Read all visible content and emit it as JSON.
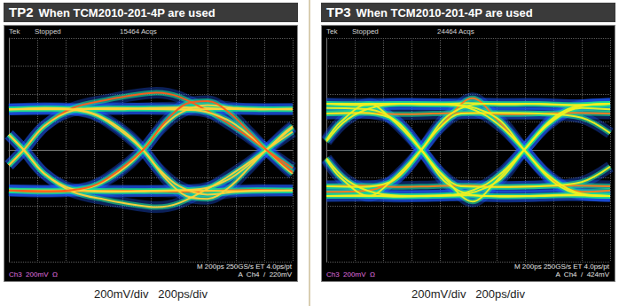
{
  "chart_data": [
    {
      "type": "line",
      "title": "TP2 When TCM2010-201-4P are used",
      "caption": "200mV/div   200ps/div",
      "annotations": [
        "Tek",
        "Stopped",
        "15464 Acqs",
        "Ch3  200mV  Ω",
        "M 200ps 250GS/s ET 4.0ps/pt",
        "A  Ch4  /  220mV"
      ],
      "xlim": [
        0,
        2000
      ],
      "xticks": [
        0,
        200,
        400,
        600,
        800,
        1000,
        1200,
        1400,
        1600,
        1800,
        2000
      ],
      "ylim": [
        -800,
        800
      ],
      "yticks": [
        -800,
        -600,
        -400,
        -200,
        0,
        200,
        400,
        600,
        800
      ],
      "grid": true,
      "tick_labels": false,
      "series": [
        {
          "color": "#ffd23a",
          "x": [
            0,
            250,
            500,
            750,
            1000,
            1250,
            1500,
            1750,
            2000
          ],
          "values": [
            290,
            300,
            295,
            290,
            300,
            305,
            295,
            290,
            295
          ]
        },
        {
          "color": "#ff5a1a",
          "x": [
            0,
            250,
            500,
            750,
            1000,
            1250,
            1500,
            1750,
            2000
          ],
          "values": [
            -290,
            -300,
            -295,
            -290,
            -295,
            -300,
            -290,
            -285,
            -290
          ]
        },
        {
          "color": "#ffd23a",
          "x": [
            0,
            300,
            550,
            700,
            850,
            945,
            1050,
            1200,
            1400,
            1600,
            1800,
            2000
          ],
          "values": [
            -290,
            -295,
            -275,
            -210,
            -100,
            0,
            130,
            260,
            320,
            300,
            290,
            290
          ]
        },
        {
          "color": "#ffd23a",
          "x": [
            0,
            300,
            550,
            700,
            850,
            945,
            1050,
            1200,
            1400,
            1600,
            1800,
            2000
          ],
          "values": [
            290,
            295,
            275,
            210,
            100,
            0,
            -130,
            -260,
            -320,
            -300,
            -290,
            -290
          ]
        },
        {
          "color": "#ff5a1a",
          "x": [
            0,
            105,
            250,
            450,
            700,
            900,
            1040,
            1200,
            1450,
            1650,
            1815,
            2000
          ],
          "values": [
            -110,
            0,
            170,
            300,
            360,
            395,
            410,
            380,
            250,
            120,
            0,
            -130
          ]
        },
        {
          "color": "#ffd23a",
          "x": [
            0,
            105,
            250,
            450,
            700,
            900,
            1040,
            1200,
            1450,
            1650,
            1815,
            2000
          ],
          "values": [
            110,
            0,
            -170,
            -300,
            -360,
            -395,
            -410,
            -380,
            -250,
            -120,
            0,
            130
          ]
        },
        {
          "color": "#ffd23a",
          "x": [
            0,
            105,
            250,
            450,
            700,
            1000,
            1300,
            1600,
            2000
          ],
          "values": [
            -110,
            0,
            170,
            280,
            300,
            295,
            290,
            295,
            290
          ]
        },
        {
          "color": "#ffd23a",
          "x": [
            0,
            105,
            250,
            450,
            700,
            1000,
            1300,
            1600,
            2000
          ],
          "values": [
            110,
            0,
            -170,
            -280,
            -300,
            -295,
            -290,
            -295,
            -290
          ]
        },
        {
          "color": "#ffd23a",
          "x": [
            0,
            400,
            800,
            1100,
            1350,
            1550,
            1700,
            1815,
            1950,
            2000
          ],
          "values": [
            -290,
            -290,
            -295,
            -290,
            -280,
            -210,
            -100,
            0,
            130,
            170
          ]
        },
        {
          "color": "#ffd23a",
          "x": [
            0,
            400,
            800,
            1100,
            1350,
            1550,
            1700,
            1815,
            1950,
            2000
          ],
          "values": [
            290,
            290,
            295,
            290,
            280,
            210,
            100,
            0,
            -130,
            -170
          ]
        },
        {
          "color": "#ffd23a",
          "x": [
            0,
            300,
            550,
            700,
            945,
            1100,
            1250,
            1400,
            1550,
            1700,
            1815,
            2000
          ],
          "values": [
            290,
            295,
            270,
            200,
            0,
            -200,
            -330,
            -350,
            -270,
            -120,
            0,
            160
          ]
        },
        {
          "color": "#ff5a1a",
          "x": [
            0,
            300,
            550,
            700,
            945,
            1100,
            1250,
            1400,
            1550,
            1700,
            1815,
            2000
          ],
          "values": [
            -290,
            -295,
            -270,
            -200,
            0,
            200,
            330,
            350,
            270,
            120,
            0,
            -160
          ]
        }
      ]
    },
    {
      "type": "line",
      "title": "TP3 When TCM2010-201-4P are used",
      "caption": "200mV/div   200ps/div",
      "annotations": [
        "Tek",
        "Stopped",
        "24464 Acqs",
        "Ch3  200mV  Ω",
        "M 200ps 250GS/s ET 4.0ps/pt",
        "A  Ch4  /  424mV"
      ],
      "xlim": [
        0,
        2000
      ],
      "xticks": [
        0,
        200,
        400,
        600,
        800,
        1000,
        1200,
        1400,
        1600,
        1800,
        2000
      ],
      "ylim": [
        -800,
        800
      ],
      "yticks": [
        -800,
        -600,
        -400,
        -200,
        0,
        200,
        400,
        600,
        800
      ],
      "grid": true,
      "tick_labels": false,
      "series": [
        {
          "color": "#f0f020",
          "x": [
            0,
            250,
            500,
            750,
            1000,
            1250,
            1500,
            1750,
            2000
          ],
          "values": [
            330,
            320,
            330,
            325,
            335,
            325,
            330,
            320,
            330
          ]
        },
        {
          "color": "#ff7a1a",
          "x": [
            0,
            250,
            500,
            750,
            1000,
            1250,
            1500,
            1750,
            2000
          ],
          "values": [
            260,
            265,
            255,
            260,
            265,
            255,
            260,
            265,
            260
          ]
        },
        {
          "color": "#f0f020",
          "x": [
            0,
            250,
            500,
            750,
            1000,
            1250,
            1500,
            1750,
            2000
          ],
          "values": [
            -330,
            -325,
            -335,
            -330,
            -325,
            -335,
            -330,
            -325,
            -330
          ]
        },
        {
          "color": "#ff7a1a",
          "x": [
            0,
            250,
            500,
            750,
            1000,
            1250,
            1500,
            1750,
            2000
          ],
          "values": [
            -260,
            -255,
            -265,
            -260,
            -255,
            -265,
            -260,
            -255,
            -260
          ]
        },
        {
          "color": "#ff7a1a",
          "x": [
            0,
            300,
            500,
            669,
            850,
            1030,
            1200,
            1394,
            1600,
            1800,
            2000
          ],
          "values": [
            -300,
            -290,
            -200,
            0,
            220,
            370,
            220,
            0,
            -220,
            -300,
            -290
          ]
        },
        {
          "color": "#f0f020",
          "x": [
            0,
            300,
            500,
            669,
            850,
            1030,
            1200,
            1394,
            1600,
            1800,
            2000
          ],
          "values": [
            300,
            290,
            200,
            0,
            -220,
            -370,
            -220,
            0,
            220,
            300,
            290
          ]
        },
        {
          "color": "#f0f020",
          "x": [
            0,
            150,
            350,
            600,
            900,
            1200,
            1394,
            1600,
            1800,
            2000
          ],
          "values": [
            60,
            220,
            310,
            330,
            325,
            230,
            0,
            -230,
            -320,
            -330
          ]
        },
        {
          "color": "#f0f020",
          "x": [
            0,
            150,
            350,
            600,
            900,
            1200,
            1394,
            1600,
            1800,
            2000
          ],
          "values": [
            -60,
            -220,
            -310,
            -330,
            -325,
            -230,
            0,
            230,
            320,
            330
          ]
        },
        {
          "color": "#f0f020",
          "x": [
            0,
            250,
            450,
            550,
            669,
            800,
            950,
            1200,
            1500,
            1800,
            2000
          ],
          "values": [
            -260,
            -265,
            -230,
            -150,
            0,
            160,
            260,
            265,
            260,
            230,
            120
          ]
        },
        {
          "color": "#f0f020",
          "x": [
            0,
            250,
            450,
            550,
            669,
            800,
            950,
            1200,
            1500,
            1800,
            2000
          ],
          "values": [
            260,
            265,
            230,
            150,
            0,
            -160,
            -260,
            -265,
            -260,
            -230,
            -120
          ]
        },
        {
          "color": "#f0f020",
          "x": [
            0,
            100,
            300,
            450,
            669,
            850,
            1100,
            1400,
            1700,
            2000
          ],
          "values": [
            70,
            200,
            330,
            230,
            0,
            -240,
            -330,
            -330,
            -320,
            -330
          ]
        },
        {
          "color": "#f0f020",
          "x": [
            0,
            100,
            300,
            450,
            669,
            850,
            1100,
            1400,
            1700,
            2000
          ],
          "values": [
            -70,
            -200,
            -330,
            -230,
            0,
            240,
            330,
            330,
            320,
            330
          ]
        },
        {
          "color": "#f0f020",
          "x": [
            0,
            500,
            900,
            1100,
            1250,
            1394,
            1550,
            1750,
            2000
          ],
          "values": [
            -330,
            -330,
            -320,
            -260,
            -150,
            0,
            170,
            300,
            330
          ]
        },
        {
          "color": "#f0f020",
          "x": [
            0,
            500,
            900,
            1100,
            1250,
            1394,
            1550,
            1750,
            2000
          ],
          "values": [
            330,
            330,
            320,
            260,
            150,
            0,
            -170,
            -300,
            -330
          ]
        }
      ]
    }
  ]
}
